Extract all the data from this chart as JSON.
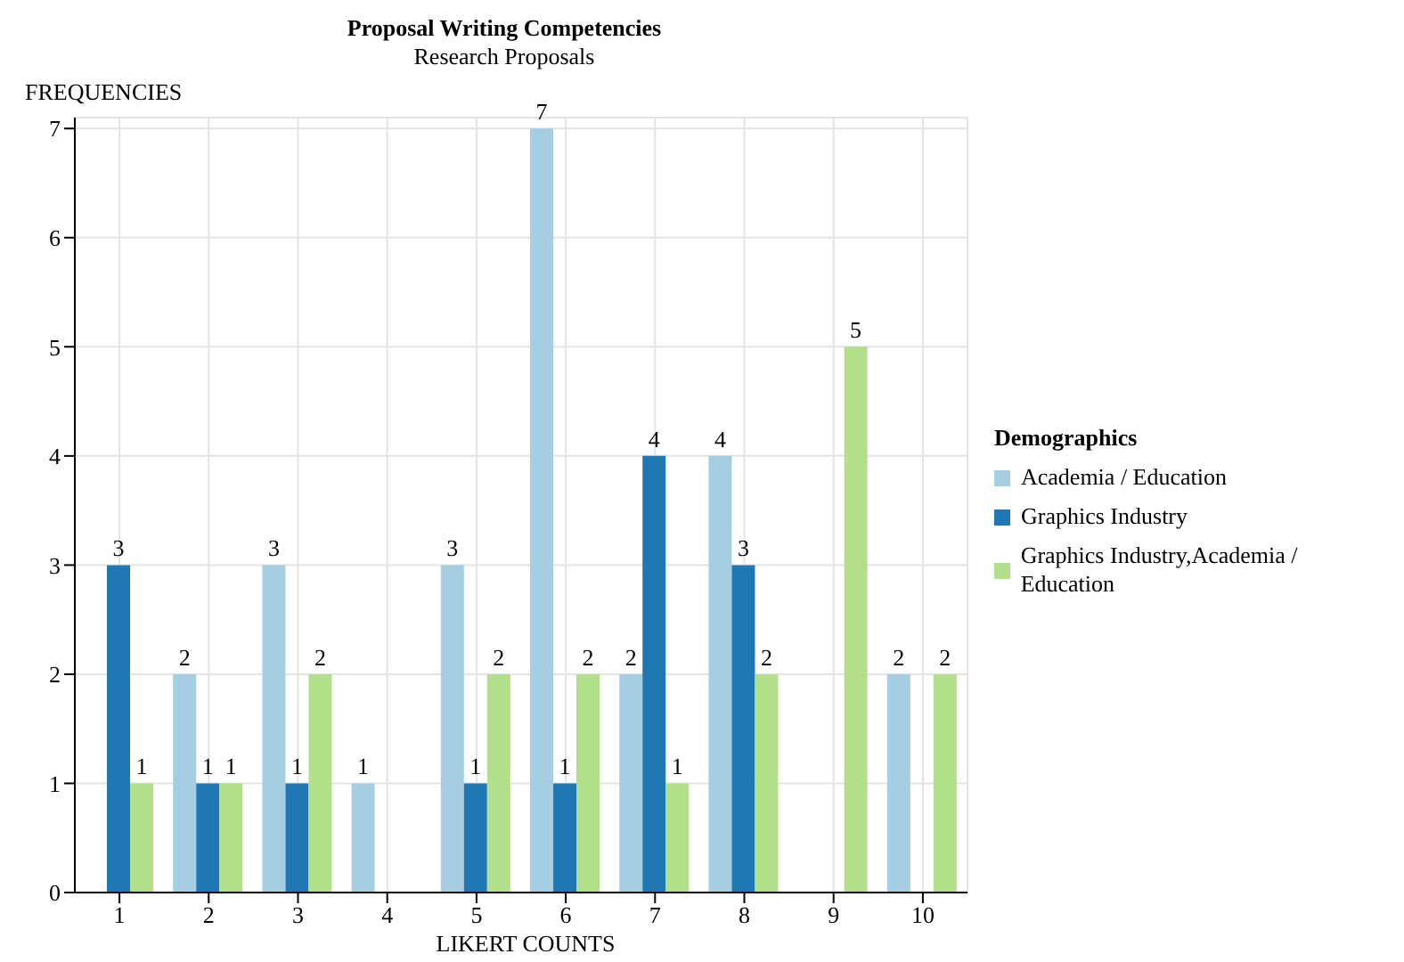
{
  "chart_data": {
    "type": "bar",
    "title": "Proposal Writing Competencies",
    "subtitle": "Research Proposals",
    "xlabel": "LIKERT COUNTS",
    "ylabel": "FREQUENCIES",
    "legend_title": "Demographics",
    "categories": [
      "1",
      "2",
      "3",
      "4",
      "5",
      "6",
      "7",
      "8",
      "9",
      "10"
    ],
    "series": [
      {
        "name": "Academia / Education",
        "color": "#a6cee3",
        "values": [
          null,
          2,
          3,
          1,
          3,
          7,
          2,
          4,
          null,
          2
        ]
      },
      {
        "name": "Graphics Industry",
        "color": "#1f78b4",
        "values": [
          3,
          1,
          1,
          null,
          1,
          1,
          4,
          3,
          null,
          null
        ]
      },
      {
        "name": "Graphics Industry,Academia / Education",
        "color": "#b2df8a",
        "values": [
          1,
          1,
          2,
          null,
          2,
          2,
          1,
          2,
          5,
          2
        ]
      }
    ],
    "ylim": [
      0,
      7.1
    ],
    "yticks": [
      0,
      1,
      2,
      3,
      4,
      5,
      6,
      7
    ],
    "grid": true,
    "legend": "right",
    "data_labels": true
  }
}
